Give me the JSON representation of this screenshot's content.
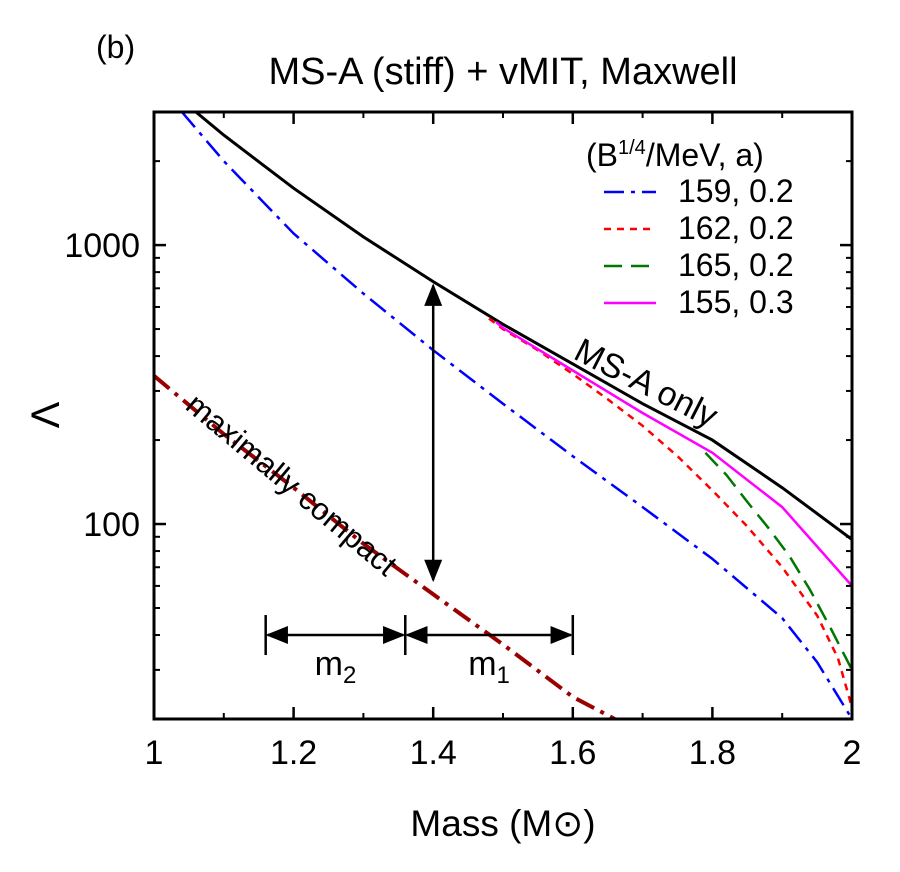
{
  "panel_label": "(b)",
  "chart_data": {
    "type": "line",
    "title": "MS-A (stiff) + vMIT, Maxwell",
    "xlabel": "Mass (M⊙)",
    "ylabel": "Λ",
    "xlim": [
      1.0,
      2.0
    ],
    "ylim": [
      20,
      3000
    ],
    "y_scale": "log",
    "x_ticks": [
      1,
      1.2,
      1.4,
      1.6,
      1.8,
      2
    ],
    "x_tick_labels": [
      "1",
      "1.2",
      "1.4",
      "1.6",
      "1.8",
      "2"
    ],
    "y_ticks": [
      100,
      1000
    ],
    "y_tick_labels": [
      "100",
      "1000"
    ],
    "grid": false,
    "legend": {
      "title": "(B¹ᐟ⁴/MeV, a)",
      "title_base": "(B",
      "title_sup": "1/4",
      "title_rest": "/MeV, a)",
      "placement": "top-right",
      "entries": [
        "159, 0.2",
        "162, 0.2",
        "165, 0.2",
        "155, 0.3"
      ]
    },
    "series": [
      {
        "name": "MS-A only",
        "color": "#000000",
        "dash": "solid",
        "x": [
          1.06,
          1.1,
          1.2,
          1.3,
          1.4,
          1.5,
          1.6,
          1.7,
          1.8,
          1.9,
          2.0
        ],
        "y": [
          3000,
          2480,
          1600,
          1070,
          740,
          520,
          375,
          270,
          200,
          135,
          88
        ]
      },
      {
        "name": "159, 0.2",
        "color": "#0000ff",
        "dash": "dashdot",
        "x": [
          1.04,
          1.1,
          1.2,
          1.3,
          1.4,
          1.5,
          1.6,
          1.7,
          1.8,
          1.9,
          1.95,
          2.0
        ],
        "y": [
          3000,
          2000,
          1100,
          670,
          420,
          270,
          175,
          115,
          75,
          46,
          32,
          20
        ]
      },
      {
        "name": "162, 0.2",
        "color": "#ff0000",
        "dash": "dotted",
        "x": [
          1.48,
          1.5,
          1.55,
          1.6,
          1.65,
          1.7,
          1.75,
          1.8,
          1.85,
          1.9,
          1.95,
          1.98,
          2.0
        ],
        "y": [
          545,
          500,
          420,
          345,
          280,
          225,
          175,
          132,
          98,
          70,
          47,
          33,
          22
        ]
      },
      {
        "name": "165, 0.2",
        "color": "#007700",
        "dash": "dashed",
        "x": [
          1.79,
          1.82,
          1.85,
          1.88,
          1.91,
          1.94,
          1.97,
          2.0
        ],
        "y": [
          180,
          150,
          120,
          97,
          77,
          58,
          42,
          30
        ]
      },
      {
        "name": "155, 0.3",
        "color": "#ff00ff",
        "dash": "solid",
        "x": [
          1.49,
          1.5,
          1.6,
          1.7,
          1.8,
          1.9,
          2.0
        ],
        "y": [
          530,
          505,
          355,
          250,
          180,
          115,
          60
        ]
      },
      {
        "name": "maximally compact",
        "color": "#9a0000",
        "dash": "dashdot",
        "x": [
          1.0,
          1.1,
          1.2,
          1.3,
          1.4,
          1.5,
          1.6,
          1.66
        ],
        "y": [
          340,
          210,
          135,
          85,
          56,
          37,
          24,
          20
        ]
      }
    ],
    "annotations": {
      "curve_label": "MS-A only",
      "compact_label": "maximally compact",
      "arrow_x": 1.4,
      "arrow_y_top": 740,
      "arrow_y_bottom": 62,
      "m2_label": "m",
      "m2_sub": "2",
      "m1_label": "m",
      "m1_sub": "1",
      "m2_range": [
        1.16,
        1.36
      ],
      "m1_range": [
        1.36,
        1.6
      ],
      "mass_bar_y": 40
    }
  }
}
